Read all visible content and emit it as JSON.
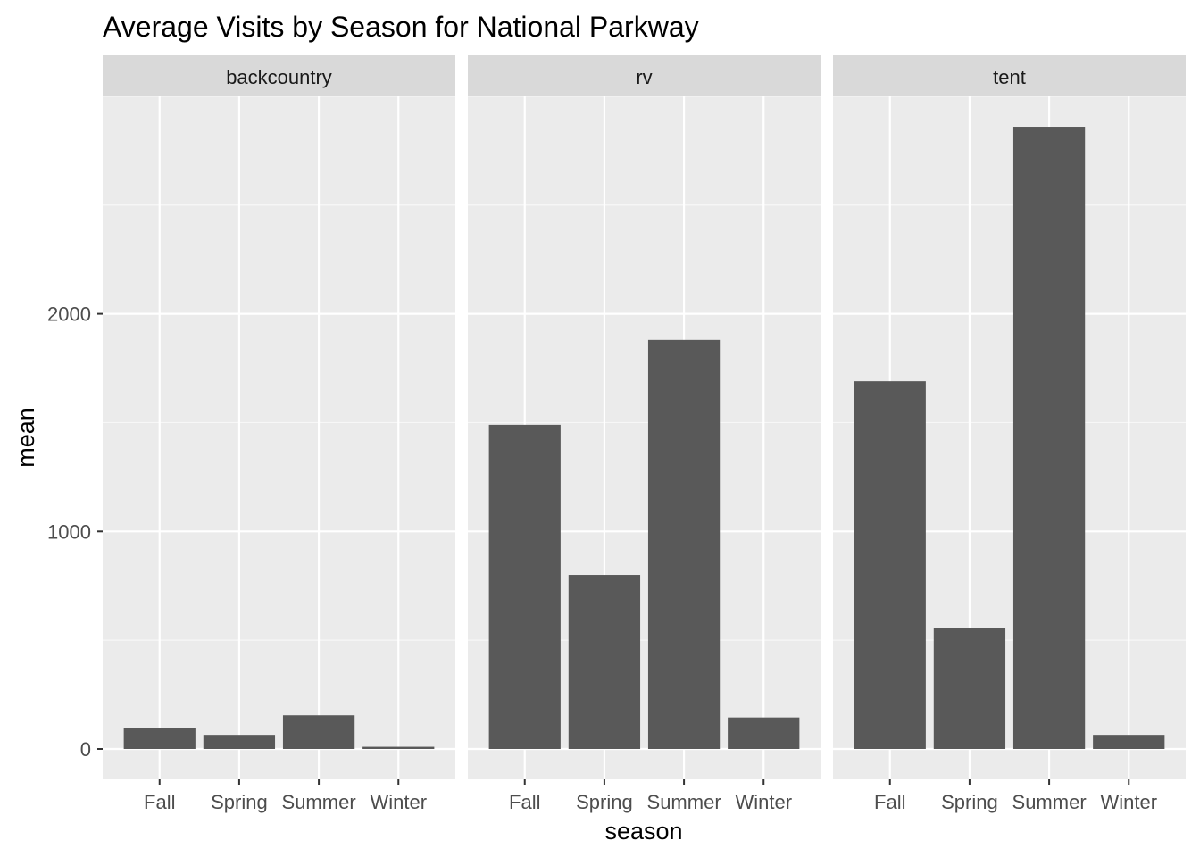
{
  "chart_data": {
    "type": "bar",
    "title": "Average Visits by Season for National Parkway",
    "xlabel": "season",
    "ylabel": "mean",
    "categories": [
      "Fall",
      "Spring",
      "Summer",
      "Winter"
    ],
    "ylim": [
      -140,
      3420
    ],
    "yticks": [
      0,
      1000,
      2000
    ],
    "yticks_minor": [
      500,
      1500,
      2500,
      3000
    ],
    "grid": true,
    "bar_color": "#595959",
    "panel_bg": "#ebebeb",
    "strip_bg": "#d9d9d9",
    "facets": [
      {
        "label": "backcountry",
        "values": [
          95,
          65,
          155,
          10
        ]
      },
      {
        "label": "rv",
        "values": [
          1490,
          800,
          1880,
          145
        ]
      },
      {
        "label": "tent",
        "values": [
          1690,
          555,
          2860,
          65
        ]
      }
    ]
  }
}
